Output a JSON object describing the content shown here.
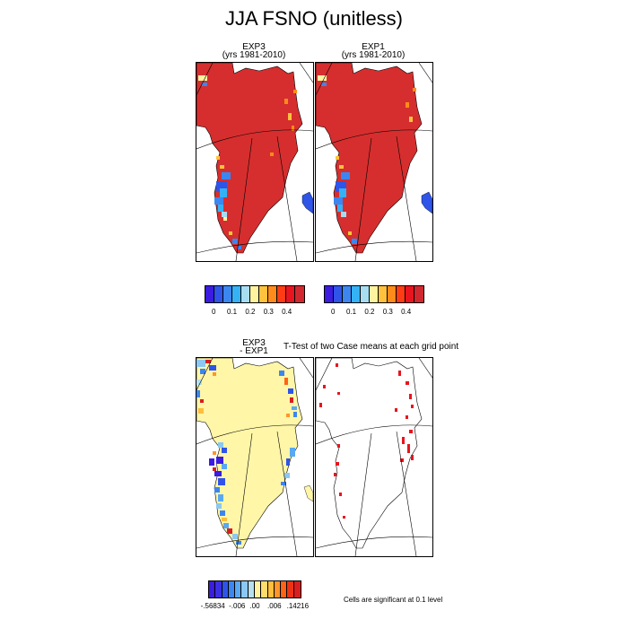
{
  "title": "JJA FSNO (unitless)",
  "panels": {
    "exp3": {
      "title_line1": "EXP3",
      "title_line2": "(yrs 1981-2010)"
    },
    "exp1": {
      "title_line1": "EXP1",
      "title_line2": "(yrs 1981-2010)"
    },
    "diff": {
      "title_line1": "EXP3",
      "title_line2": "- EXP1"
    },
    "ttest": {
      "title": "T-Test of two Case means at each grid point"
    }
  },
  "colorbar_top": {
    "colors": [
      "#3b1ce0",
      "#2f54e8",
      "#3c86f0",
      "#35b2f5",
      "#a8dcf0",
      "#fff3a0",
      "#ffc23c",
      "#ff8c1a",
      "#ff3c14",
      "#e8141e",
      "#d0282e"
    ],
    "labels": [
      "0",
      "0.1",
      "0.2",
      "0.3",
      "0.4"
    ]
  },
  "colorbar_bottom": {
    "colors": [
      "#3b1ce0",
      "#3c2fe6",
      "#2f54e8",
      "#3c86f0",
      "#5aa8f2",
      "#8cc8f2",
      "#b4e0f0",
      "#fff3a0",
      "#ffdc6e",
      "#ffbe3c",
      "#ff9628",
      "#ff6414",
      "#f03214",
      "#d81e1e"
    ],
    "labels": [
      "-.56834",
      "-.006",
      ".00",
      ".006",
      ".14216"
    ]
  },
  "significance_note": "Cells are significant at 0.1 level",
  "colors": {
    "land_high": "#d62e2e",
    "diff_neutral": "#fff6a8",
    "sig_mark": "#e8141e"
  }
}
